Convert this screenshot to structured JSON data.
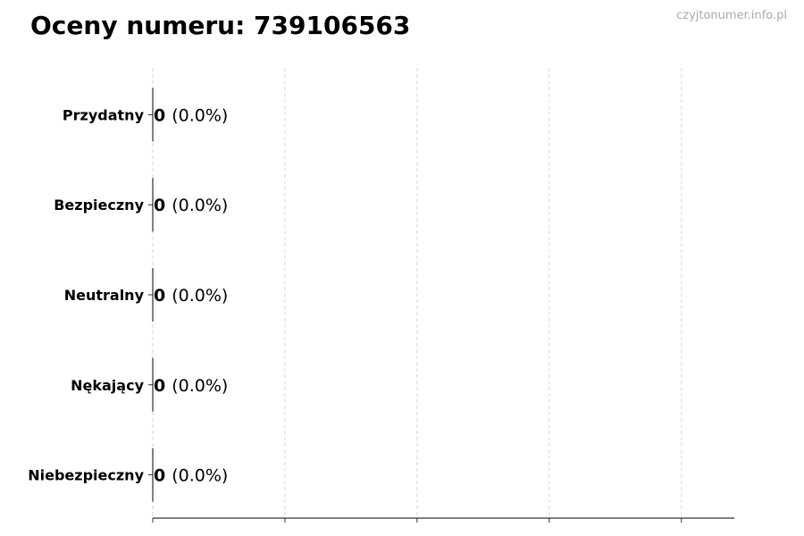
{
  "title": "Oceny numeru: 739106563",
  "watermark": "czyjtonumer.info.pl",
  "chart_data": {
    "type": "bar",
    "orientation": "horizontal",
    "categories": [
      "Przydatny",
      "Bezpieczny",
      "Neutralny",
      "Nękający",
      "Niebezpieczny"
    ],
    "values": [
      0,
      0,
      0,
      0,
      0
    ],
    "data_labels": [
      {
        "count": "0",
        "percent": "(0.0%)"
      },
      {
        "count": "0",
        "percent": "(0.0%)"
      },
      {
        "count": "0",
        "percent": "(0.0%)"
      },
      {
        "count": "0",
        "percent": "(0.0%)"
      },
      {
        "count": "0",
        "percent": "(0.0%)"
      }
    ],
    "xlim": [
      0,
      4.4
    ],
    "xticks": [
      0,
      1,
      2,
      3,
      4
    ],
    "xtick_labels_shown": false,
    "grid": "x, dashed",
    "colors": {
      "bar_edge": "#000000",
      "grid": "#cccccc"
    }
  }
}
